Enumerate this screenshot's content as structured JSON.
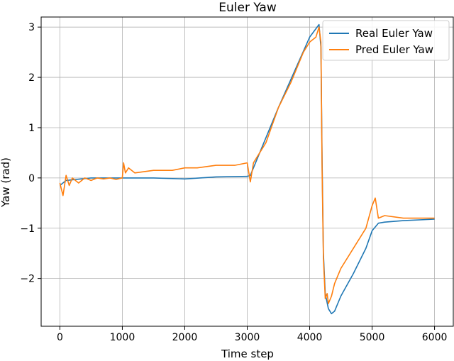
{
  "chart_data": {
    "type": "line",
    "title": "Euler Yaw",
    "xlabel": "Time step",
    "ylabel": "Yaw (rad)",
    "xlim": [
      -300,
      6300
    ],
    "ylim": [
      -2.95,
      3.2
    ],
    "xticks": [
      0,
      1000,
      2000,
      3000,
      4000,
      5000,
      6000
    ],
    "xtick_labels": [
      "0",
      "1000",
      "2000",
      "3000",
      "4000",
      "5000",
      "6000"
    ],
    "yticks": [
      3,
      2,
      1,
      0,
      -1,
      -2
    ],
    "ytick_labels": [
      "3",
      "2",
      "1",
      "0",
      "−1",
      "−2"
    ],
    "grid": true,
    "legend_position": "top-right",
    "series": [
      {
        "name": "Real Euler Yaw",
        "color": "#1f77b4",
        "x": [
          0,
          100,
          500,
          1000,
          1500,
          2000,
          2500,
          3000,
          3050,
          3500,
          4000,
          4150,
          4180,
          4200,
          4220,
          4250,
          4300,
          4350,
          4400,
          4500,
          4700,
          4900,
          5000,
          5100,
          5200,
          5500,
          6000
        ],
        "y": [
          -0.15,
          -0.05,
          0.0,
          0.0,
          0.0,
          -0.02,
          0.02,
          0.03,
          0.05,
          1.4,
          2.8,
          3.05,
          2.6,
          0.3,
          -1.5,
          -2.3,
          -2.6,
          -2.7,
          -2.65,
          -2.35,
          -1.9,
          -1.4,
          -1.05,
          -0.9,
          -0.88,
          -0.85,
          -0.82
        ]
      },
      {
        "name": "Pred Euler Yaw",
        "color": "#ff7f0e",
        "x": [
          0,
          50,
          100,
          150,
          200,
          300,
          400,
          500,
          600,
          700,
          800,
          900,
          1000,
          1020,
          1050,
          1100,
          1200,
          1500,
          1800,
          2000,
          2200,
          2500,
          2800,
          3000,
          3050,
          3100,
          3300,
          3500,
          3700,
          3900,
          4000,
          4100,
          4150,
          4180,
          4200,
          4220,
          4250,
          4280,
          4300,
          4350,
          4400,
          4500,
          4700,
          4900,
          5000,
          5050,
          5100,
          5200,
          5500,
          6000
        ],
        "y": [
          -0.1,
          -0.35,
          0.05,
          -0.15,
          0.0,
          -0.1,
          0.0,
          -0.05,
          0.0,
          -0.02,
          0.0,
          -0.03,
          0.0,
          0.3,
          0.1,
          0.2,
          0.1,
          0.15,
          0.15,
          0.2,
          0.2,
          0.25,
          0.25,
          0.3,
          -0.08,
          0.3,
          0.7,
          1.4,
          1.9,
          2.5,
          2.7,
          2.8,
          3.0,
          2.7,
          0.1,
          -1.6,
          -2.4,
          -2.3,
          -2.5,
          -2.35,
          -2.1,
          -1.8,
          -1.4,
          -1.0,
          -0.55,
          -0.4,
          -0.8,
          -0.75,
          -0.8,
          -0.8
        ]
      }
    ]
  }
}
